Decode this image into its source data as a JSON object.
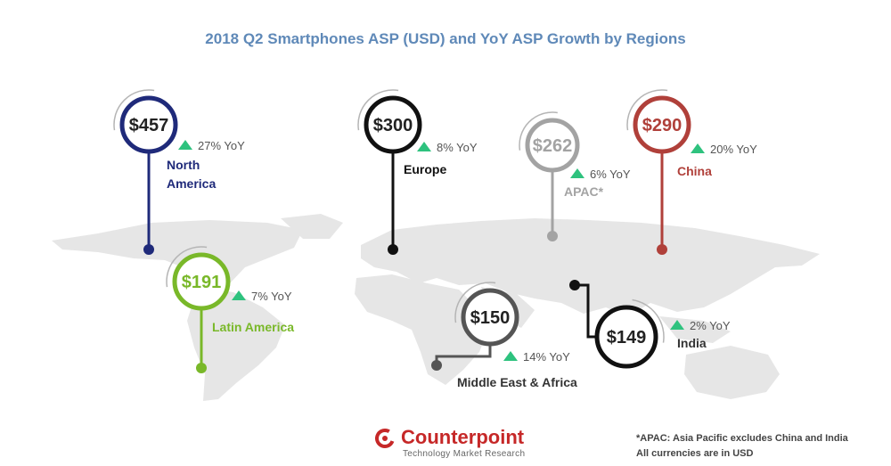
{
  "title": "2018 Q2 Smartphones ASP (USD) and YoY ASP Growth by Regions",
  "chart_data": {
    "type": "map",
    "title": "2018 Q2 Smartphones ASP (USD) and YoY ASP Growth by Regions",
    "unit": "USD",
    "regions": [
      {
        "name": "North America",
        "asp": "$457",
        "yoy": "27% YoY",
        "color": "#1f2a7a"
      },
      {
        "name": "Latin America",
        "asp": "$191",
        "yoy": "7% YoY",
        "color": "#79b829"
      },
      {
        "name": "Europe",
        "asp": "$300",
        "yoy": "8% YoY",
        "color": "#111111"
      },
      {
        "name": "APAC*",
        "asp": "$262",
        "yoy": "6% YoY",
        "color": "#a3a3a3"
      },
      {
        "name": "China",
        "asp": "$290",
        "yoy": "20% YoY",
        "color": "#b0403a"
      },
      {
        "name": "Middle East & Africa",
        "asp": "$150",
        "yoy": "14% YoY",
        "color": "#555555"
      },
      {
        "name": "India",
        "asp": "$149",
        "yoy": "2% YoY",
        "color": "#111111"
      }
    ]
  },
  "footnote": {
    "line1": "*APAC: Asia Pacific excludes China and India",
    "line2": "All currencies are in USD"
  },
  "logo": {
    "name": "Counterpoint",
    "tagline": "Technology Market Research"
  },
  "colors": {
    "title": "#5f89b8",
    "growth_arrow": "#2ec27e",
    "map": "#e6e6e6"
  }
}
